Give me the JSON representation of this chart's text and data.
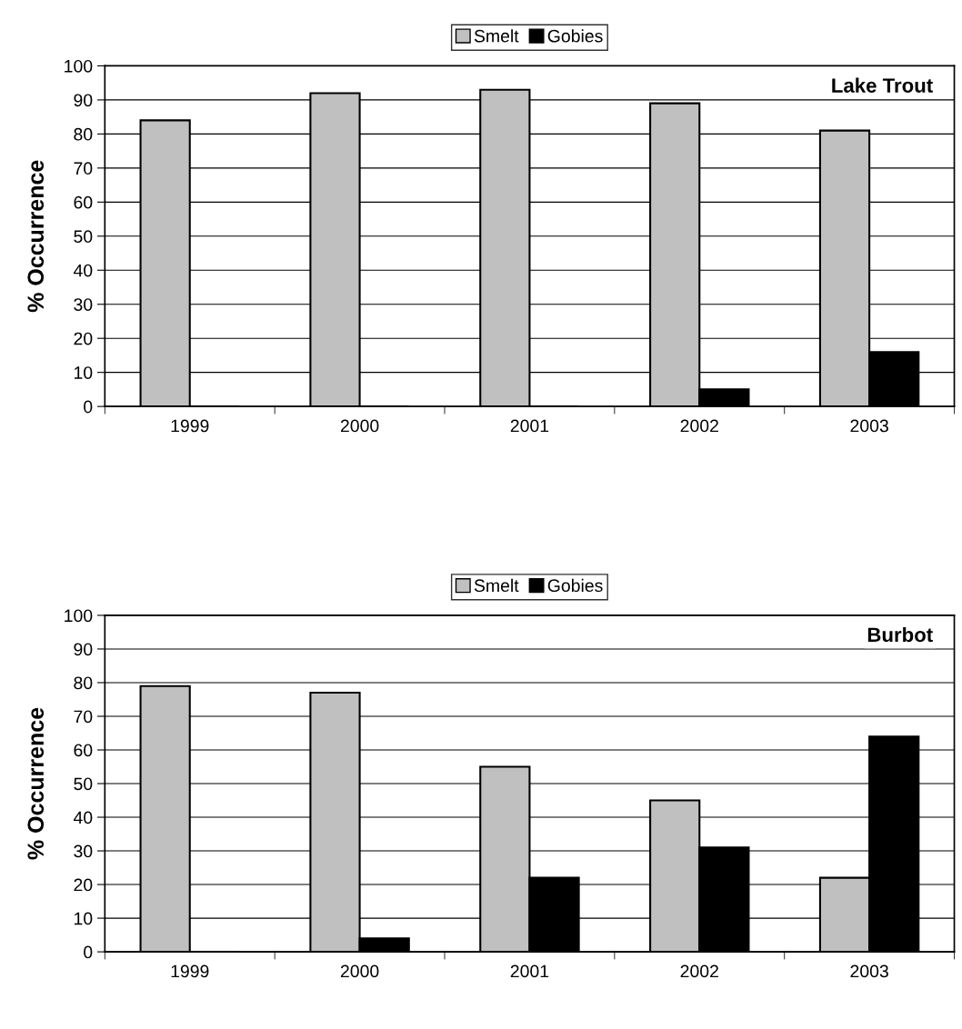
{
  "chart_data": [
    {
      "type": "bar",
      "categories": [
        "1999",
        "2000",
        "2001",
        "2002",
        "2003"
      ],
      "ylabel": "% Occurrence",
      "ylim": [
        0,
        100
      ],
      "yticks": [
        0,
        10,
        20,
        30,
        40,
        50,
        60,
        70,
        80,
        90,
        100
      ],
      "grid": "y",
      "legend": "top",
      "annotations": [
        "Lake Trout"
      ],
      "series": [
        {
          "name": "Smelt",
          "color": "#c0c0c0",
          "values": [
            84,
            92,
            93,
            89,
            81
          ]
        },
        {
          "name": "Gobies",
          "color": "#000000",
          "values": [
            0,
            0,
            0,
            5,
            16
          ]
        }
      ]
    },
    {
      "type": "bar",
      "categories": [
        "1999",
        "2000",
        "2001",
        "2002",
        "2003"
      ],
      "ylabel": "% Occurrence",
      "ylim": [
        0,
        100
      ],
      "yticks": [
        0,
        10,
        20,
        30,
        40,
        50,
        60,
        70,
        80,
        90,
        100
      ],
      "grid": "y",
      "legend": "top",
      "annotations": [
        "Burbot"
      ],
      "series": [
        {
          "name": "Smelt",
          "color": "#c0c0c0",
          "values": [
            79,
            77,
            55,
            45,
            22
          ]
        },
        {
          "name": "Gobies",
          "color": "#000000",
          "values": [
            0,
            4,
            22,
            31,
            64
          ]
        }
      ]
    }
  ]
}
